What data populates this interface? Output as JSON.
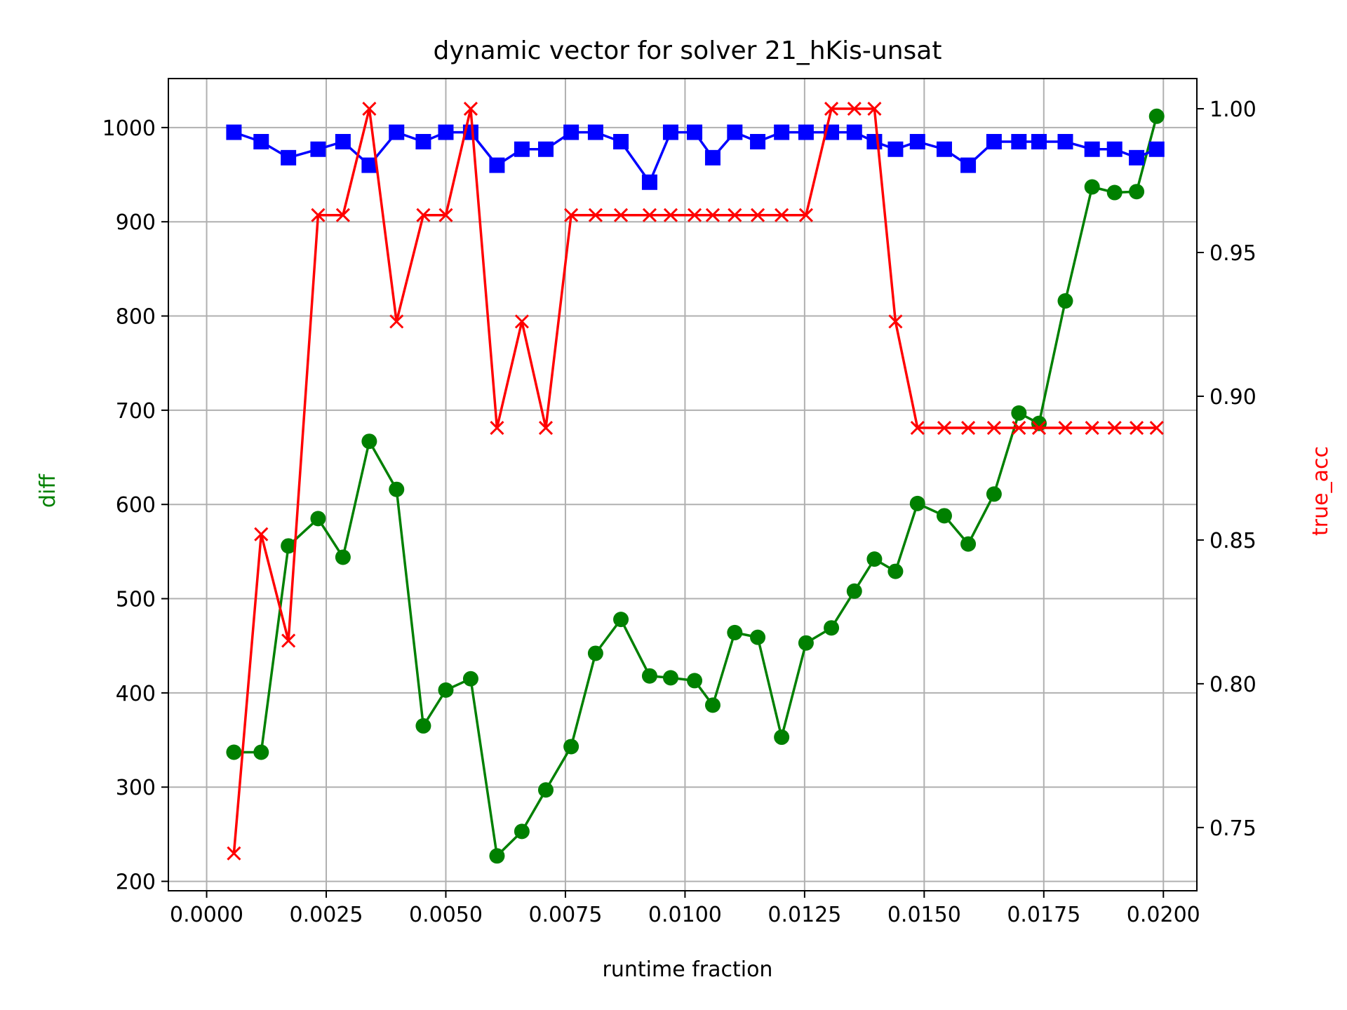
{
  "chart_data": {
    "type": "line",
    "title": "dynamic vector for solver 21_hKis-unsat",
    "xlabel": "runtime fraction",
    "ylabel": "diff",
    "ylabel_right": "true_acc",
    "xlim": [
      -0.0008,
      0.0207
    ],
    "ylim": [
      190,
      1052
    ],
    "ylim_right": [
      0.728,
      1.0105
    ],
    "x_ticks": [
      0.0,
      0.0025,
      0.005,
      0.0075,
      0.01,
      0.0125,
      0.015,
      0.0175,
      0.02
    ],
    "x_tick_labels": [
      "0.0000",
      "0.0025",
      "0.0050",
      "0.0075",
      "0.0100",
      "0.0125",
      "0.0150",
      "0.0175",
      "0.0200"
    ],
    "y_ticks": [
      200,
      300,
      400,
      500,
      600,
      700,
      800,
      900,
      1000
    ],
    "y_tick_labels": [
      "200",
      "300",
      "400",
      "500",
      "600",
      "700",
      "800",
      "900",
      "1000"
    ],
    "y_right_ticks": [
      0.75,
      0.8,
      0.85,
      0.9,
      0.95,
      1.0
    ],
    "y_right_tick_labels": [
      "0.75",
      "0.80",
      "0.85",
      "0.90",
      "0.95",
      "1.00"
    ],
    "grid": true,
    "x": [
      0.00057,
      0.00114,
      0.00171,
      0.00233,
      0.00285,
      0.0034,
      0.00397,
      0.00453,
      0.005,
      0.00552,
      0.00607,
      0.00659,
      0.00709,
      0.00762,
      0.00813,
      0.00866,
      0.00926,
      0.0097,
      0.0102,
      0.01058,
      0.01104,
      0.01152,
      0.01202,
      0.01253,
      0.01306,
      0.01354,
      0.01396,
      0.0144,
      0.01486,
      0.01542,
      0.01592,
      0.01646,
      0.01698,
      0.0174,
      0.01795,
      0.01851,
      0.01898,
      0.01944,
      0.01986
    ],
    "series": [
      {
        "axis": "left",
        "color": "#008000",
        "marker": "circle",
        "values": [
          337,
          337,
          556,
          585,
          544,
          667,
          616,
          365,
          403,
          415,
          227,
          253,
          297,
          343,
          442,
          478,
          418,
          416,
          413,
          387,
          464,
          459,
          353,
          453,
          469,
          508,
          542,
          529,
          601,
          588,
          558,
          611,
          697,
          686,
          816,
          937,
          931,
          932,
          1012
        ]
      },
      {
        "axis": "left",
        "color": "#0000ff",
        "marker": "square",
        "values": [
          995,
          985,
          968,
          977,
          985,
          960,
          995,
          985,
          995,
          995,
          960,
          977,
          977,
          995,
          995,
          985,
          942,
          995,
          995,
          968,
          995,
          985,
          995,
          995,
          995,
          995,
          985,
          977,
          985,
          977,
          960,
          985,
          985,
          985,
          985,
          977,
          977,
          968,
          977
        ]
      },
      {
        "axis": "right",
        "color": "#ff0000",
        "marker": "x",
        "values": [
          0.741,
          0.852,
          0.815,
          0.963,
          0.963,
          1.0,
          0.926,
          0.963,
          0.963,
          1.0,
          0.889,
          0.926,
          0.889,
          0.963,
          0.963,
          0.963,
          0.963,
          0.963,
          0.963,
          0.963,
          0.963,
          0.963,
          0.963,
          0.963,
          1.0,
          1.0,
          1.0,
          0.926,
          0.889,
          0.889,
          0.889,
          0.889,
          0.889,
          0.889,
          0.889,
          0.889,
          0.889,
          0.889,
          0.889
        ]
      }
    ],
    "label_colors": {
      "ylabel": "#008000",
      "ylabel_right": "#ff0000"
    }
  }
}
